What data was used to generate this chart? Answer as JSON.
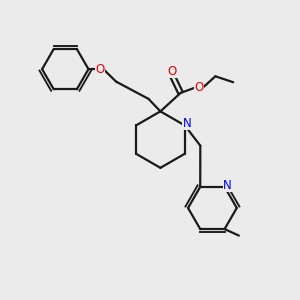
{
  "bg_color": "#ebebeb",
  "bond_color": "#1a1a1a",
  "N_color": "#0000ee",
  "O_color": "#ee0000",
  "lw": 1.6,
  "figsize": [
    3.0,
    3.0
  ],
  "dpi": 100,
  "xlim": [
    0,
    10
  ],
  "ylim": [
    0,
    10
  ]
}
